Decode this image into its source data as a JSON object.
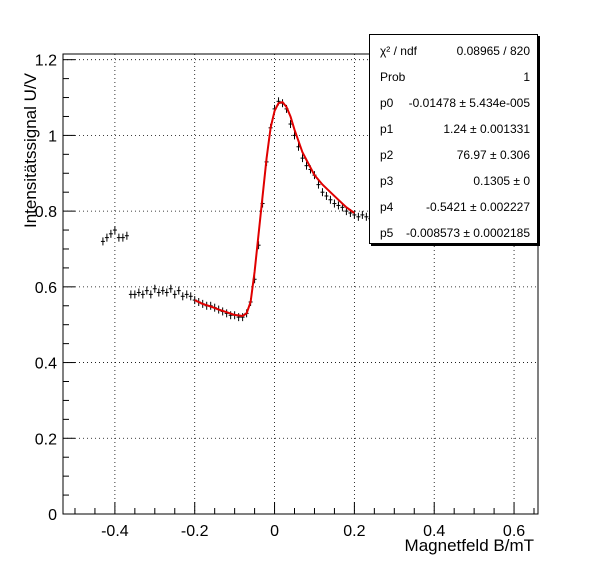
{
  "chart_data": {
    "type": "scatter",
    "xlabel": "Magnetfeld B/mT",
    "ylabel": "Intensitätssignal U/V",
    "xlim": [
      -0.53,
      0.66
    ],
    "ylim": [
      0,
      1.215
    ],
    "x_ticks": [
      -0.4,
      -0.2,
      0,
      0.2,
      0.4,
      0.6
    ],
    "x_tick_labels": [
      "-0.4",
      "-0.2",
      "0",
      "0.2",
      "0.4",
      "0.6"
    ],
    "y_ticks": [
      0,
      0.2,
      0.4,
      0.6,
      0.8,
      1,
      1.2
    ],
    "y_tick_labels": [
      "0",
      "0.2",
      "0.4",
      "0.6",
      "0.8",
      "1",
      "1.2"
    ],
    "grid": true,
    "series": [
      {
        "kind": "data",
        "color": "#000000",
        "x": [
          -0.43,
          -0.42,
          -0.41,
          -0.4,
          -0.39,
          -0.38,
          -0.37,
          -0.36,
          -0.35,
          -0.34,
          -0.33,
          -0.32,
          -0.31,
          -0.3,
          -0.29,
          -0.28,
          -0.27,
          -0.26,
          -0.25,
          -0.24,
          -0.23,
          -0.22,
          -0.21,
          -0.2,
          -0.19,
          -0.18,
          -0.17,
          -0.16,
          -0.15,
          -0.14,
          -0.13,
          -0.12,
          -0.11,
          -0.1,
          -0.09,
          -0.08,
          -0.07,
          -0.06,
          -0.05,
          -0.04,
          -0.03,
          -0.02,
          -0.01,
          0.0,
          0.01,
          0.02,
          0.03,
          0.04,
          0.05,
          0.06,
          0.07,
          0.08,
          0.09,
          0.1,
          0.11,
          0.12,
          0.13,
          0.14,
          0.15,
          0.16,
          0.17,
          0.18,
          0.19,
          0.2,
          0.21,
          0.22,
          0.23,
          0.24,
          0.25
        ],
        "y": [
          0.72,
          0.73,
          0.74,
          0.75,
          0.73,
          0.73,
          0.735,
          0.58,
          0.58,
          0.585,
          0.58,
          0.59,
          0.58,
          0.595,
          0.585,
          0.59,
          0.585,
          0.595,
          0.58,
          0.59,
          0.575,
          0.58,
          0.575,
          0.565,
          0.56,
          0.555,
          0.55,
          0.55,
          0.545,
          0.54,
          0.535,
          0.53,
          0.525,
          0.525,
          0.52,
          0.52,
          0.53,
          0.56,
          0.62,
          0.71,
          0.82,
          0.93,
          1.02,
          1.07,
          1.09,
          1.085,
          1.07,
          1.03,
          1.0,
          0.97,
          0.94,
          0.92,
          0.91,
          0.895,
          0.87,
          0.85,
          0.84,
          0.83,
          0.82,
          0.815,
          0.81,
          0.8,
          0.795,
          0.79,
          0.785,
          0.79,
          0.785,
          0.78,
          0.785
        ]
      },
      {
        "kind": "fit",
        "color": "#e00000",
        "x": [
          -0.2,
          -0.18,
          -0.16,
          -0.14,
          -0.12,
          -0.1,
          -0.08,
          -0.07,
          -0.06,
          -0.05,
          -0.04,
          -0.03,
          -0.02,
          -0.01,
          0.0,
          0.01,
          0.02,
          0.03,
          0.04,
          0.05,
          0.06,
          0.07,
          0.08,
          0.1,
          0.12,
          0.14,
          0.16,
          0.18,
          0.2
        ],
        "y": [
          0.565,
          0.555,
          0.548,
          0.54,
          0.533,
          0.526,
          0.523,
          0.53,
          0.56,
          0.64,
          0.74,
          0.84,
          0.94,
          1.02,
          1.065,
          1.085,
          1.088,
          1.075,
          1.05,
          1.015,
          0.985,
          0.955,
          0.935,
          0.895,
          0.87,
          0.85,
          0.83,
          0.81,
          0.795
        ]
      }
    ],
    "legend": "top-right",
    "stats": [
      {
        "name": "χ² / ndf",
        "value": "0.08965 / 820"
      },
      {
        "name": "Prob",
        "value": "1"
      },
      {
        "name": "p0",
        "value": "-0.01478 ± 5.434e-005"
      },
      {
        "name": "p1",
        "value": "1.24 ± 0.001331"
      },
      {
        "name": "p2",
        "value": "76.97 ± 0.306"
      },
      {
        "name": "p3",
        "value": "0.1305 ±      0"
      },
      {
        "name": "p4",
        "value": "-0.5421 ± 0.002227"
      },
      {
        "name": "p5",
        "value": "-0.008573 ± 0.0002185"
      }
    ]
  }
}
